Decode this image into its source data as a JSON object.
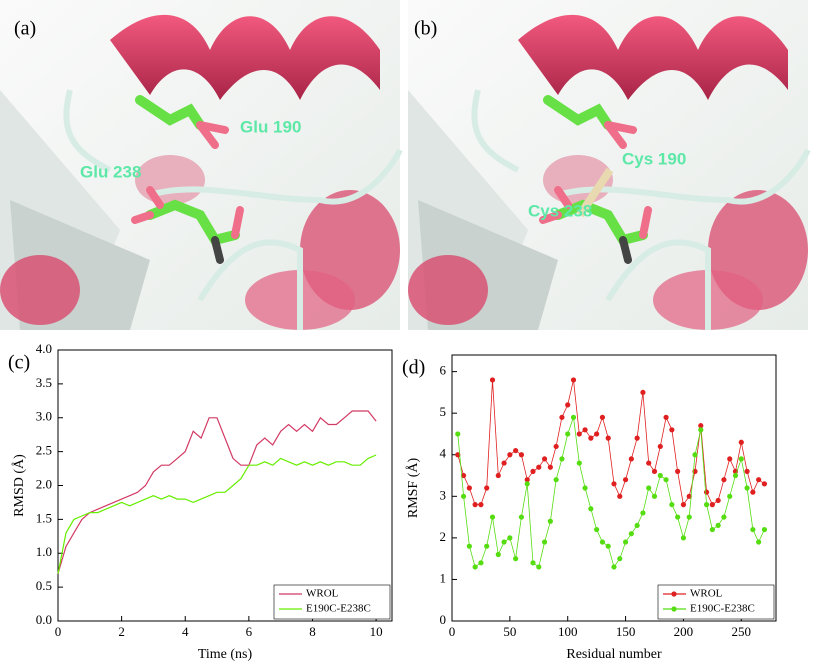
{
  "panels": [
    {
      "label": "(a)",
      "annotations": [
        "Glu 190",
        "Glu 238"
      ]
    },
    {
      "label": "(b)",
      "annotations": [
        "Cys 190",
        "Cys 238"
      ]
    }
  ],
  "chart_data": [
    {
      "type": "line",
      "label": "(c)",
      "x_label": "Time (ns)",
      "y_label": "RMSD (Å)",
      "x": [
        0,
        0.25,
        0.5,
        0.75,
        1,
        1.25,
        1.5,
        1.75,
        2,
        2.25,
        2.5,
        2.75,
        3,
        3.25,
        3.5,
        3.75,
        4,
        4.25,
        4.5,
        4.75,
        5,
        5.25,
        5.5,
        5.75,
        6,
        6.25,
        6.5,
        6.75,
        7,
        7.25,
        7.5,
        7.75,
        8,
        8.25,
        8.5,
        8.75,
        9,
        9.25,
        9.5,
        9.75,
        10
      ],
      "series": [
        {
          "name": "WROL",
          "color": "#d23a64",
          "values": [
            0.7,
            1.1,
            1.3,
            1.5,
            1.6,
            1.65,
            1.7,
            1.75,
            1.8,
            1.85,
            1.9,
            2.0,
            2.2,
            2.3,
            2.3,
            2.4,
            2.5,
            2.8,
            2.7,
            3.0,
            3.0,
            2.7,
            2.4,
            2.3,
            2.3,
            2.6,
            2.7,
            2.6,
            2.8,
            2.9,
            2.8,
            2.9,
            2.8,
            3.0,
            2.9,
            2.9,
            3.0,
            3.1,
            3.1,
            3.1,
            2.95
          ]
        },
        {
          "name": "E190C-E238C",
          "color": "#66ee00",
          "values": [
            0.7,
            1.3,
            1.5,
            1.55,
            1.6,
            1.6,
            1.65,
            1.7,
            1.75,
            1.7,
            1.75,
            1.8,
            1.85,
            1.8,
            1.85,
            1.8,
            1.8,
            1.75,
            1.8,
            1.85,
            1.9,
            1.9,
            2.0,
            2.1,
            2.3,
            2.3,
            2.35,
            2.3,
            2.4,
            2.35,
            2.3,
            2.35,
            2.3,
            2.35,
            2.3,
            2.35,
            2.35,
            2.3,
            2.3,
            2.4,
            2.45
          ]
        }
      ],
      "xlim": [
        0,
        10.5
      ],
      "xticks": [
        0,
        2,
        4,
        6,
        8,
        10
      ],
      "ylim": [
        0,
        4
      ],
      "yticks": [
        {
          "value": 0,
          "label": "0.0"
        },
        0.5,
        {
          "value": 1,
          "label": "1.0"
        },
        1.5,
        {
          "value": 2,
          "label": "2.0"
        },
        2.5,
        {
          "value": 3,
          "label": "3.0"
        },
        3.5,
        {
          "value": 4,
          "label": "4.0"
        }
      ],
      "markers": false,
      "legend": "bottom-right"
    },
    {
      "type": "line",
      "label": "(d)",
      "x_label": "Residual number",
      "y_label": "RMSF (Å)",
      "x": [
        5,
        10,
        15,
        20,
        25,
        30,
        35,
        40,
        45,
        50,
        55,
        60,
        65,
        70,
        75,
        80,
        85,
        90,
        95,
        100,
        105,
        110,
        115,
        120,
        125,
        130,
        135,
        140,
        145,
        150,
        155,
        160,
        165,
        170,
        175,
        180,
        185,
        190,
        195,
        200,
        205,
        210,
        215,
        220,
        225,
        230,
        235,
        240,
        245,
        250,
        255,
        260,
        265,
        270
      ],
      "series": [
        {
          "name": "WROL",
          "color": "#e02020",
          "values": [
            4.0,
            3.5,
            3.2,
            2.8,
            2.8,
            3.2,
            5.8,
            3.5,
            3.8,
            4.0,
            4.1,
            4.0,
            3.4,
            3.6,
            3.7,
            3.9,
            3.7,
            4.2,
            4.9,
            5.2,
            5.8,
            4.5,
            4.6,
            4.4,
            4.5,
            4.9,
            4.4,
            3.3,
            3.0,
            3.4,
            3.9,
            4.4,
            5.5,
            3.8,
            3.6,
            4.2,
            4.9,
            4.6,
            3.6,
            2.8,
            3.0,
            3.6,
            4.7,
            3.1,
            2.8,
            2.9,
            3.4,
            3.9,
            3.6,
            4.3,
            3.6,
            3.1,
            3.4,
            3.3
          ]
        },
        {
          "name": "E190C-E238C",
          "color": "#55dd11",
          "values": [
            4.5,
            3.0,
            1.8,
            1.3,
            1.4,
            1.8,
            2.5,
            1.6,
            1.9,
            2.0,
            1.5,
            2.5,
            3.3,
            1.4,
            1.3,
            1.9,
            2.4,
            3.4,
            3.9,
            4.5,
            4.9,
            3.8,
            3.2,
            2.7,
            2.2,
            1.9,
            1.8,
            1.3,
            1.5,
            1.9,
            2.1,
            2.3,
            2.6,
            3.2,
            3.0,
            3.5,
            3.4,
            2.8,
            2.5,
            2.0,
            2.5,
            4.0,
            4.6,
            2.8,
            2.2,
            2.3,
            2.5,
            3.0,
            3.5,
            3.9,
            3.2,
            2.2,
            1.9,
            2.2
          ]
        }
      ],
      "xlim": [
        0,
        280
      ],
      "xticks": [
        0,
        50,
        100,
        150,
        200,
        250
      ],
      "ylim": [
        0,
        6.4
      ],
      "yticks": [
        0,
        1,
        2,
        3,
        4,
        5,
        6
      ],
      "markers": true,
      "legend": "bottom-right"
    }
  ]
}
